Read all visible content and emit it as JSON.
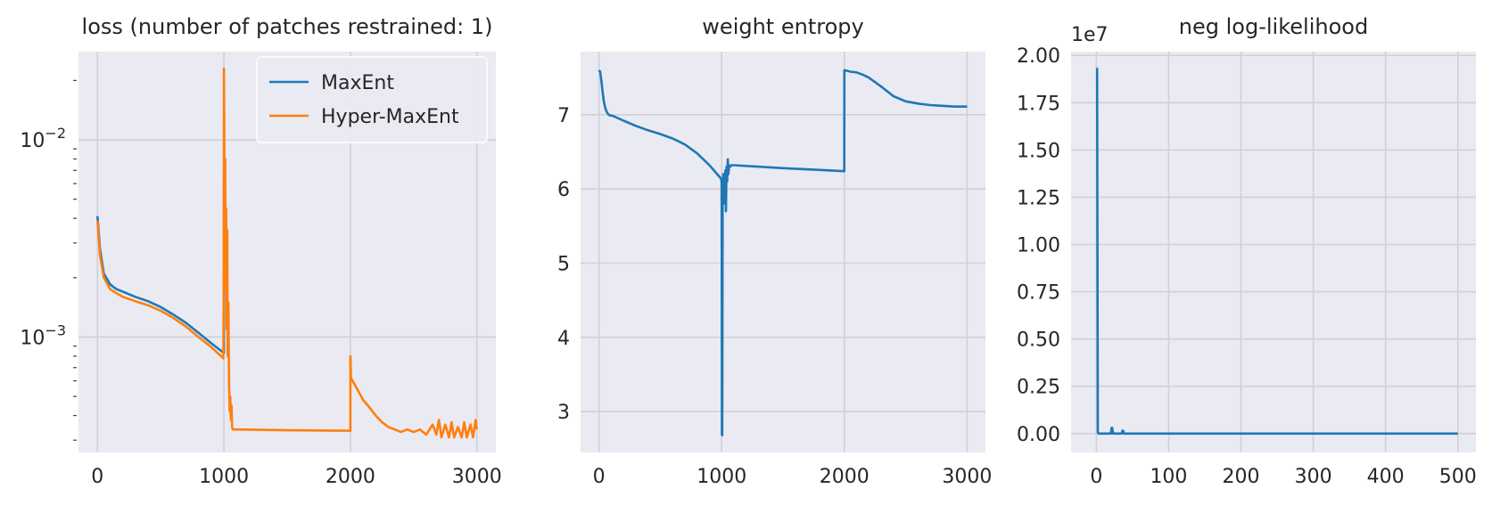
{
  "colors": {
    "maxent": "#1f77b4",
    "hypermaxent": "#ff7f0e",
    "panel_bg": "#eaeaf2",
    "grid": "#ffffff"
  },
  "chart_data": [
    {
      "type": "line",
      "title": "loss (number of patches restrained: 1)",
      "xlim": [
        -150,
        3150
      ],
      "ylim": [
        0.00026,
        0.028
      ],
      "yscale": "log",
      "xticks": [
        0,
        1000,
        2000,
        3000
      ],
      "xtick_labels": [
        "0",
        "1000",
        "2000",
        "3000"
      ],
      "yticks": [
        0.001,
        0.01
      ],
      "ytick_labels": [
        {
          "base": "10",
          "exp": "−3"
        },
        {
          "base": "10",
          "exp": "−2"
        }
      ],
      "grid": true,
      "legend": "top-right",
      "series": [
        {
          "name": "MaxEnt",
          "color": "#1f77b4",
          "x": [
            0,
            20,
            50,
            100,
            150,
            200,
            300,
            400,
            500,
            600,
            700,
            800,
            900,
            1000,
            1000
          ],
          "y": [
            0.0041,
            0.0028,
            0.0021,
            0.00185,
            0.00175,
            0.0017,
            0.0016,
            0.00152,
            0.00142,
            0.0013,
            0.00118,
            0.00105,
            0.00093,
            0.00083,
            0.0021
          ]
        },
        {
          "name": "Hyper-MaxEnt",
          "color": "#ff7f0e",
          "x": [
            0,
            20,
            50,
            100,
            150,
            200,
            300,
            400,
            500,
            600,
            700,
            800,
            900,
            995,
            998,
            1000,
            1003,
            1006,
            1010,
            1014,
            1018,
            1022,
            1026,
            1030,
            1035,
            1040,
            1045,
            1050,
            1055,
            1060,
            1065,
            1070,
            1080,
            1100,
            1500,
            2000,
            2000,
            2005,
            2050,
            2100,
            2150,
            2200,
            2250,
            2300,
            2350,
            2400,
            2450,
            2500,
            2550,
            2600,
            2650,
            2680,
            2700,
            2720,
            2750,
            2780,
            2800,
            2820,
            2850,
            2880,
            2900,
            2920,
            2950,
            2970,
            2990,
            3000
          ],
          "y": [
            0.0039,
            0.0026,
            0.002,
            0.00175,
            0.00167,
            0.0016,
            0.00152,
            0.00145,
            0.00136,
            0.00125,
            0.00113,
            0.001,
            0.00089,
            0.00078,
            0.0015,
            0.023,
            0.012,
            0.0022,
            0.008,
            0.0017,
            0.0045,
            0.0011,
            0.0035,
            0.0008,
            0.0015,
            0.0006,
            0.00042,
            0.0005,
            0.00038,
            0.00045,
            0.00035,
            0.00034,
            0.00034,
            0.00034,
            0.000337,
            0.000335,
            0.0008,
            0.00062,
            0.00055,
            0.00048,
            0.00044,
            0.0004,
            0.00037,
            0.00035,
            0.00034,
            0.00033,
            0.00034,
            0.00033,
            0.00034,
            0.00032,
            0.00036,
            0.00032,
            0.00038,
            0.00031,
            0.00036,
            0.00031,
            0.00037,
            0.00031,
            0.00035,
            0.00031,
            0.00037,
            0.00031,
            0.00036,
            0.00031,
            0.00038,
            0.00034
          ]
        }
      ]
    },
    {
      "type": "line",
      "title": "weight entropy",
      "xlim": [
        -150,
        3150
      ],
      "ylim": [
        2.45,
        7.85
      ],
      "yscale": "linear",
      "xticks": [
        0,
        1000,
        2000,
        3000
      ],
      "xtick_labels": [
        "0",
        "1000",
        "2000",
        "3000"
      ],
      "yticks": [
        3,
        4,
        5,
        6,
        7
      ],
      "ytick_labels": [
        "3",
        "4",
        "5",
        "6",
        "7"
      ],
      "grid": true,
      "series": [
        {
          "color": "#1f77b4",
          "x": [
            0,
            10,
            20,
            30,
            40,
            50,
            60,
            70,
            80,
            90,
            100,
            120,
            200,
            300,
            400,
            500,
            600,
            650,
            700,
            800,
            900,
            995,
            1000,
            1002,
            1004,
            1006,
            1008,
            1012,
            1016,
            1020,
            1025,
            1030,
            1035,
            1040,
            1045,
            1050,
            1055,
            1060,
            1070,
            1080,
            1100,
            1500,
            1999,
            2000,
            2050,
            2100,
            2150,
            2200,
            2300,
            2400,
            2500,
            2600,
            2700,
            2800,
            2900,
            3000
          ],
          "y": [
            7.6,
            7.58,
            7.45,
            7.3,
            7.18,
            7.1,
            7.05,
            7.02,
            7.0,
            6.99,
            6.99,
            6.98,
            6.92,
            6.85,
            6.79,
            6.74,
            6.68,
            6.64,
            6.6,
            6.48,
            6.32,
            6.14,
            6.1,
            2.7,
            2.68,
            3.5,
            5.9,
            6.2,
            5.8,
            6.2,
            5.9,
            6.25,
            5.7,
            6.3,
            6.1,
            6.4,
            6.2,
            6.32,
            6.3,
            6.32,
            6.32,
            6.28,
            6.24,
            7.6,
            7.58,
            7.57,
            7.54,
            7.5,
            7.38,
            7.25,
            7.18,
            7.15,
            7.13,
            7.12,
            7.11,
            7.11
          ]
        }
      ]
    },
    {
      "type": "line",
      "title": "neg log-likelihood",
      "offset_text": "1e7",
      "xlim": [
        -35,
        525
      ],
      "ylim": [
        -0.1,
        2.02
      ],
      "yscale": "linear",
      "xticks": [
        0,
        100,
        200,
        300,
        400,
        500
      ],
      "xtick_labels": [
        "0",
        "100",
        "200",
        "300",
        "400",
        "500"
      ],
      "yticks": [
        0,
        0.25,
        0.5,
        0.75,
        1.0,
        1.25,
        1.5,
        1.75,
        2.0
      ],
      "ytick_labels": [
        "0.00",
        "0.25",
        "0.50",
        "0.75",
        "1.00",
        "1.25",
        "1.50",
        "1.75",
        "2.00"
      ],
      "grid": true,
      "series": [
        {
          "color": "#1f77b4",
          "x": [
            0,
            1,
            2,
            3,
            20,
            21,
            22,
            23,
            35,
            36,
            37,
            38,
            500
          ],
          "y": [
            1.93,
            1.93,
            0.005,
            0.0,
            0.0,
            0.03,
            0.03,
            0.0,
            0.0,
            0.015,
            0.015,
            0.0,
            0.0
          ]
        }
      ]
    }
  ]
}
